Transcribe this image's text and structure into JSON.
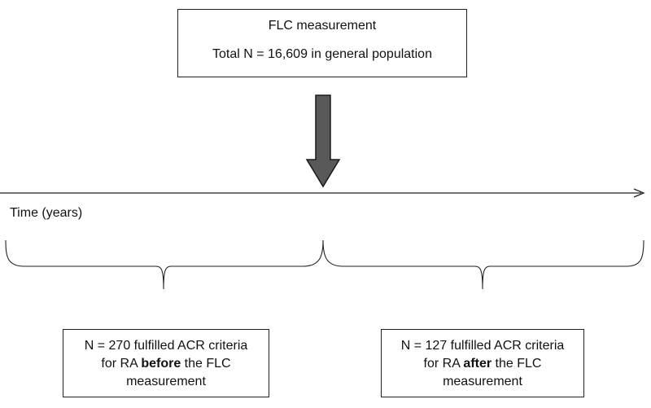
{
  "top_box": {
    "line1": "FLC measurement",
    "line2": "Total N = 16,609 in general population"
  },
  "timeline": {
    "label": "Time (years)"
  },
  "left_box": {
    "line1": "N = 270 fulfilled ACR criteria",
    "line2_pre": "for RA ",
    "line2_bold": "before",
    "line2_post": " the FLC",
    "line3": "measurement"
  },
  "right_box": {
    "line1": "N = 127 fulfilled ACR criteria",
    "line2_pre": "for RA ",
    "line2_bold": "after",
    "line2_post": " the FLC",
    "line3": "measurement"
  },
  "colors": {
    "arrow_fill": "#595959",
    "arrow_stroke": "#1a1a1a",
    "line": "#222222"
  }
}
